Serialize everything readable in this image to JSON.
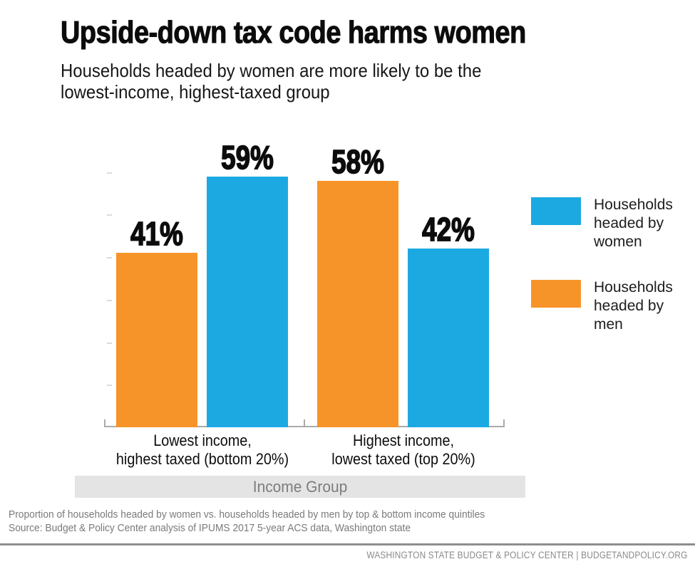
{
  "header": {
    "title": "Upside-down tax code harms women",
    "subtitle": "Households headed by women are more likely to be the\nlowest-income, highest-taxed group"
  },
  "chart_data": {
    "type": "bar",
    "title": "Upside-down tax code harms women",
    "subtitle": "Households headed by women are more likely to be the lowest-income, highest-taxed group",
    "categories": [
      "Lowest income,\nhighest taxed (bottom 20%)",
      "Highest income,\nlowest taxed (top 20%)"
    ],
    "series": [
      {
        "name": "Households headed by men",
        "color": "#F79429",
        "values": [
          41,
          58
        ]
      },
      {
        "name": "Households headed by women",
        "color": "#1CA9E2",
        "values": [
          59,
          42
        ]
      }
    ],
    "value_suffix": "%",
    "xlabel": "Income Group",
    "ylabel": "",
    "ylim": [
      0,
      100
    ],
    "grid": false,
    "legend_position": "right"
  },
  "legend": {
    "items": [
      {
        "label": "Households\nheaded by\nwomen",
        "color": "#1CA9E2"
      },
      {
        "label": "Households\nheaded by\nmen",
        "color": "#F79429"
      }
    ]
  },
  "footer": {
    "note": "Proportion of households headed by women vs. households headed by men by top & bottom income quintiles",
    "source": "Source: Budget & Policy Center analysis of IPUMS 2017 5-year ACS data, Washington state",
    "brand": "WASHINGTON STATE BUDGET & POLICY CENTER | BUDGETANDPOLICY.ORG"
  },
  "colors": {
    "women_blue": "#1CA9E2",
    "men_orange": "#F79429",
    "band_gray": "#E4E4E4",
    "axis_gray": "#ABABAB"
  }
}
